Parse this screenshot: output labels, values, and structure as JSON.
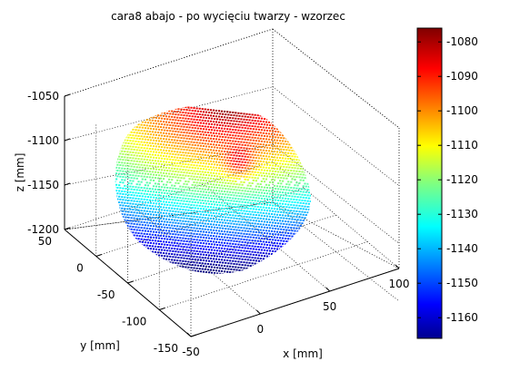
{
  "chart_data": {
    "type": "scatter",
    "title": "cara8 abajo - po wycięciu twarzy - wzorzec",
    "xlabel": "x [mm]",
    "ylabel": "y [mm]",
    "zlabel": "z [mm]",
    "x_ticks": [
      "-50",
      "0",
      "50",
      "100"
    ],
    "y_ticks": [
      "50",
      "0",
      "-50",
      "-100",
      "-150"
    ],
    "z_ticks": [
      "-1050",
      "-1100",
      "-1150",
      "-1200"
    ],
    "xlim": [
      -50,
      100
    ],
    "ylim": [
      -150,
      50
    ],
    "zlim": [
      -1200,
      -1050
    ],
    "colorbar": {
      "colormap": "jet",
      "ticks": [
        "-1080",
        "-1090",
        "-1100",
        "-1110",
        "-1120",
        "-1130",
        "-1140",
        "-1150",
        "-1160"
      ],
      "range": [
        -1166,
        -1076
      ]
    },
    "grid": true,
    "description_free": true
  }
}
